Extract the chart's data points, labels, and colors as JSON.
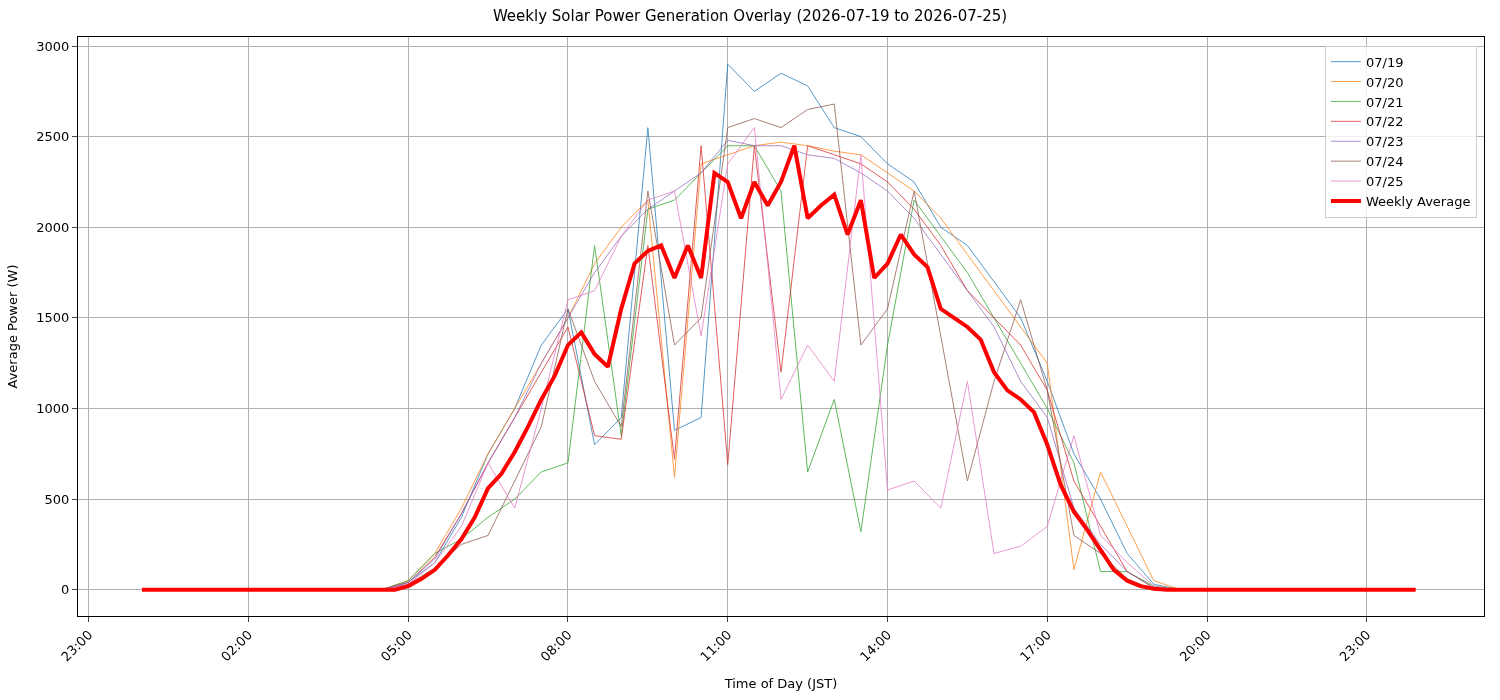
{
  "chart_data": {
    "type": "line",
    "title": "Weekly Solar Power Generation Overlay (2026-07-19 to 2026-07-25)",
    "xlabel": "Time of Day (JST)",
    "ylabel": "Average Power (W)",
    "x": [
      "2026-07-19T04:30",
      "2026-07-19T05:00",
      "2026-07-19T05:30",
      "2026-07-19T06:00",
      "2026-07-19T06:30",
      "2026-07-19T07:00",
      "2026-07-19T07:30",
      "2026-07-19T08:00",
      "2026-07-19T08:30",
      "2026-07-19T09:00",
      "2026-07-19T09:30",
      "2026-07-19T10:00",
      "2026-07-19T10:30",
      "2026-07-19T11:00",
      "2026-07-19T11:30",
      "2026-07-19T12:00",
      "2026-07-19T12:30",
      "2026-07-19T13:00",
      "2026-07-19T13:30",
      "2026-07-19T14:00",
      "2026-07-19T14:30",
      "2026-07-19T15:00",
      "2026-07-19T15:30",
      "2026-07-19T16:00",
      "2026-07-19T16:30",
      "2026-07-19T17:00",
      "2026-07-19T17:30",
      "2026-07-19T18:00",
      "2026-07-19T18:30",
      "2026-07-19T19:00",
      "2026-07-19T19:30"
    ],
    "xlim": [
      "2026-07-18T22:48",
      "2026-07-20T01:12"
    ],
    "ylim": [
      -145,
      3050
    ],
    "xticks": [
      {
        "value": "2026-07-18T23:00",
        "label": "23:00"
      },
      {
        "value": "2026-07-19T02:00",
        "label": "02:00"
      },
      {
        "value": "2026-07-19T05:00",
        "label": "05:00"
      },
      {
        "value": "2026-07-19T08:00",
        "label": "08:00"
      },
      {
        "value": "2026-07-19T11:00",
        "label": "11:00"
      },
      {
        "value": "2026-07-19T14:00",
        "label": "14:00"
      },
      {
        "value": "2026-07-19T17:00",
        "label": "17:00"
      },
      {
        "value": "2026-07-19T20:00",
        "label": "20:00"
      },
      {
        "value": "2026-07-19T23:00",
        "label": "23:00"
      }
    ],
    "yticks": [
      0,
      500,
      1000,
      1500,
      2000,
      2500,
      3000
    ],
    "grid": true,
    "legend": "top right",
    "series": [
      {
        "name": "07/19",
        "color": "#1f77b4",
        "values": [
          0,
          40,
          150,
          400,
          750,
          1000,
          1350,
          1550,
          800,
          950,
          2550,
          880,
          950,
          2900,
          2750,
          2850,
          2780,
          2550,
          2500,
          2350,
          2250,
          2000,
          1900,
          1700,
          1500,
          1150,
          750,
          500,
          200,
          30,
          0
        ]
      },
      {
        "name": "07/20",
        "color": "#ff7f0e",
        "values": [
          0,
          50,
          200,
          450,
          750,
          1000,
          1250,
          1500,
          1800,
          2000,
          2150,
          620,
          2350,
          2400,
          2450,
          2470,
          2450,
          2420,
          2400,
          2300,
          2200,
          2050,
          1850,
          1650,
          1450,
          1250,
          110,
          650,
          350,
          50,
          0
        ]
      },
      {
        "name": "07/21",
        "color": "#2ca02c",
        "values": [
          0,
          50,
          200,
          280,
          400,
          500,
          650,
          700,
          1900,
          850,
          2100,
          2150,
          2300,
          2450,
          2450,
          2200,
          650,
          1050,
          320,
          1350,
          2150,
          1950,
          1750,
          1500,
          1250,
          1000,
          700,
          100,
          100,
          20,
          0
        ]
      },
      {
        "name": "07/22",
        "color": "#d62728",
        "values": [
          0,
          40,
          180,
          420,
          700,
          950,
          1200,
          1450,
          850,
          830,
          1900,
          720,
          2450,
          690,
          2450,
          1200,
          2450,
          2400,
          2350,
          2250,
          2100,
          1900,
          1650,
          1500,
          1350,
          1100,
          600,
          350,
          100,
          10,
          0
        ]
      },
      {
        "name": "07/23",
        "color": "#9467bd",
        "values": [
          0,
          40,
          170,
          420,
          700,
          950,
          1250,
          1500,
          1750,
          1950,
          2100,
          2200,
          2300,
          2480,
          2450,
          2450,
          2400,
          2380,
          2300,
          2200,
          2050,
          1850,
          1650,
          1450,
          1150,
          950,
          450,
          250,
          100,
          10,
          0
        ]
      },
      {
        "name": "07/24",
        "color": "#8c564b",
        "values": [
          0,
          30,
          120,
          250,
          300,
          600,
          900,
          1550,
          1150,
          900,
          2200,
          1350,
          1500,
          2550,
          2600,
          2550,
          2650,
          2680,
          1350,
          1550,
          2200,
          1400,
          600,
          1150,
          1600,
          1100,
          300,
          200,
          60,
          0,
          0
        ]
      },
      {
        "name": "07/25",
        "color": "#e377c2",
        "values": [
          0,
          30,
          150,
          350,
          700,
          450,
          1000,
          1600,
          1650,
          1950,
          2150,
          2200,
          1400,
          2350,
          2550,
          1050,
          1350,
          1150,
          2400,
          550,
          600,
          450,
          1150,
          200,
          240,
          350,
          850,
          300,
          150,
          20,
          0
        ]
      },
      {
        "name": "Weekly Average",
        "color": "#ff0000",
        "x": [
          "2026-07-19T00:00",
          "2026-07-19T04:45",
          "2026-07-19T05:00",
          "2026-07-19T05:15",
          "2026-07-19T05:30",
          "2026-07-19T05:45",
          "2026-07-19T06:00",
          "2026-07-19T06:15",
          "2026-07-19T06:30",
          "2026-07-19T06:45",
          "2026-07-19T07:00",
          "2026-07-19T07:15",
          "2026-07-19T07:30",
          "2026-07-19T07:45",
          "2026-07-19T08:00",
          "2026-07-19T08:15",
          "2026-07-19T08:30",
          "2026-07-19T08:45",
          "2026-07-19T09:00",
          "2026-07-19T09:15",
          "2026-07-19T09:30",
          "2026-07-19T09:45",
          "2026-07-19T10:00",
          "2026-07-19T10:15",
          "2026-07-19T10:30",
          "2026-07-19T10:45",
          "2026-07-19T11:00",
          "2026-07-19T11:15",
          "2026-07-19T11:30",
          "2026-07-19T11:45",
          "2026-07-19T12:00",
          "2026-07-19T12:15",
          "2026-07-19T12:30",
          "2026-07-19T12:45",
          "2026-07-19T13:00",
          "2026-07-19T13:15",
          "2026-07-19T13:30",
          "2026-07-19T13:45",
          "2026-07-19T14:00",
          "2026-07-19T14:15",
          "2026-07-19T14:30",
          "2026-07-19T14:45",
          "2026-07-19T15:00",
          "2026-07-19T15:15",
          "2026-07-19T15:30",
          "2026-07-19T15:45",
          "2026-07-19T16:00",
          "2026-07-19T16:15",
          "2026-07-19T16:30",
          "2026-07-19T16:45",
          "2026-07-19T17:00",
          "2026-07-19T17:15",
          "2026-07-19T17:30",
          "2026-07-19T17:45",
          "2026-07-19T18:00",
          "2026-07-19T18:15",
          "2026-07-19T18:30",
          "2026-07-19T18:45",
          "2026-07-19T19:00",
          "2026-07-19T19:15",
          "2026-07-19T23:55"
        ],
        "values": [
          0,
          0,
          20,
          60,
          110,
          190,
          280,
          400,
          560,
          640,
          760,
          900,
          1050,
          1180,
          1350,
          1420,
          1300,
          1230,
          1550,
          1800,
          1870,
          1900,
          1720,
          1900,
          1720,
          2300,
          2250,
          2050,
          2250,
          2120,
          2250,
          2450,
          2050,
          2120,
          2180,
          1960,
          2150,
          1720,
          1800,
          1960,
          1850,
          1780,
          1550,
          1500,
          1450,
          1380,
          1200,
          1100,
          1050,
          980,
          800,
          580,
          430,
          330,
          220,
          110,
          50,
          20,
          5,
          0,
          0
        ]
      }
    ]
  }
}
